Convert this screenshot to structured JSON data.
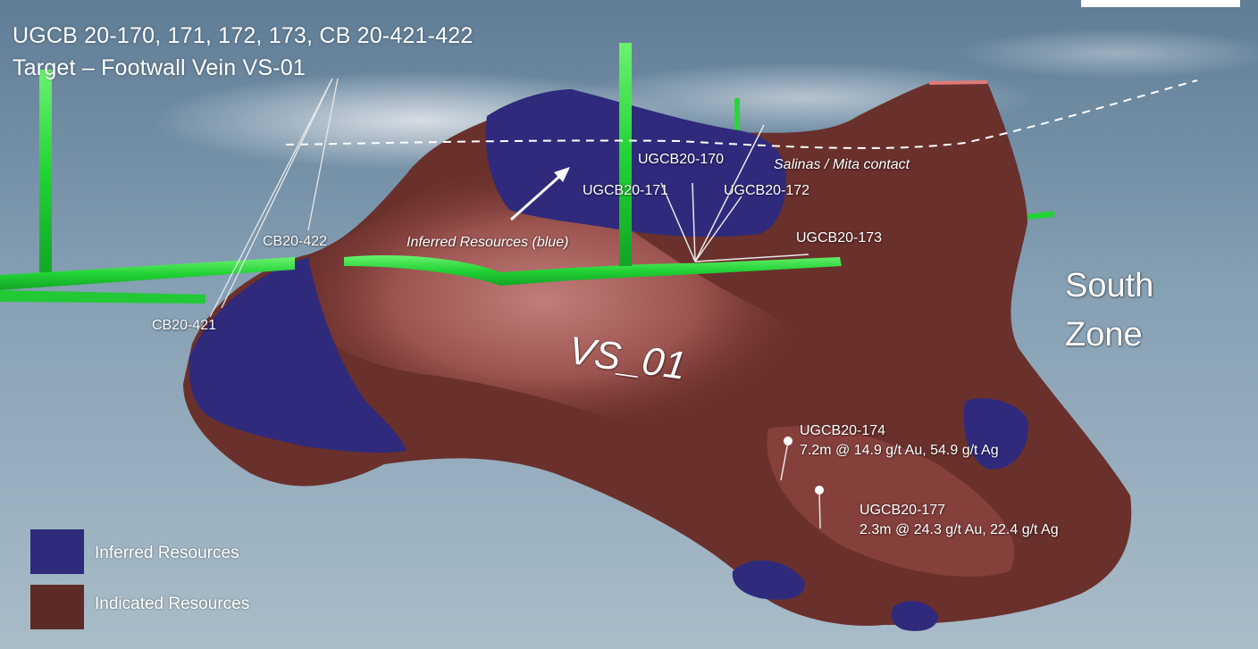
{
  "title": {
    "line1": "UGCB 20-170, 171, 172, 173, CB 20-421-422",
    "line2": "Target – Footwall Vein VS-01"
  },
  "drillholes": {
    "cb20_422": "CB20-422",
    "cb20_421": "CB20-421",
    "ugcb20_170": "UGCB20-170",
    "ugcb20_171": "UGCB20-171",
    "ugcb20_172": "UGCB20-172",
    "ugcb20_173": "UGCB20-173"
  },
  "annotations": {
    "contact": "Salinas / Mita contact",
    "inferred_arrow": "Inferred Resources (blue)",
    "vein_name": "VS_01",
    "zone_line1": "South",
    "zone_line2": "Zone"
  },
  "intercepts": [
    {
      "hole": "UGCB20-174",
      "result": "7.2m @ 14.9 g/t Au, 54.9 g/t Ag"
    },
    {
      "hole": "UGCB20-177",
      "result": "2.3m @ 24.3 g/t Au, 22.4 g/t Ag"
    }
  ],
  "legend": [
    {
      "label": "Inferred Resources",
      "color": "#2f2a7c"
    },
    {
      "label": "Indicated Resources",
      "color": "#5e2a27"
    }
  ],
  "colors": {
    "sky_top": "#5f7d96",
    "sky_bottom": "#a9bcc8",
    "indicated": "#6a302c",
    "indicated_highlight": "#c07a78",
    "inferred": "#2f2a7c",
    "drift": "#27d93a"
  }
}
